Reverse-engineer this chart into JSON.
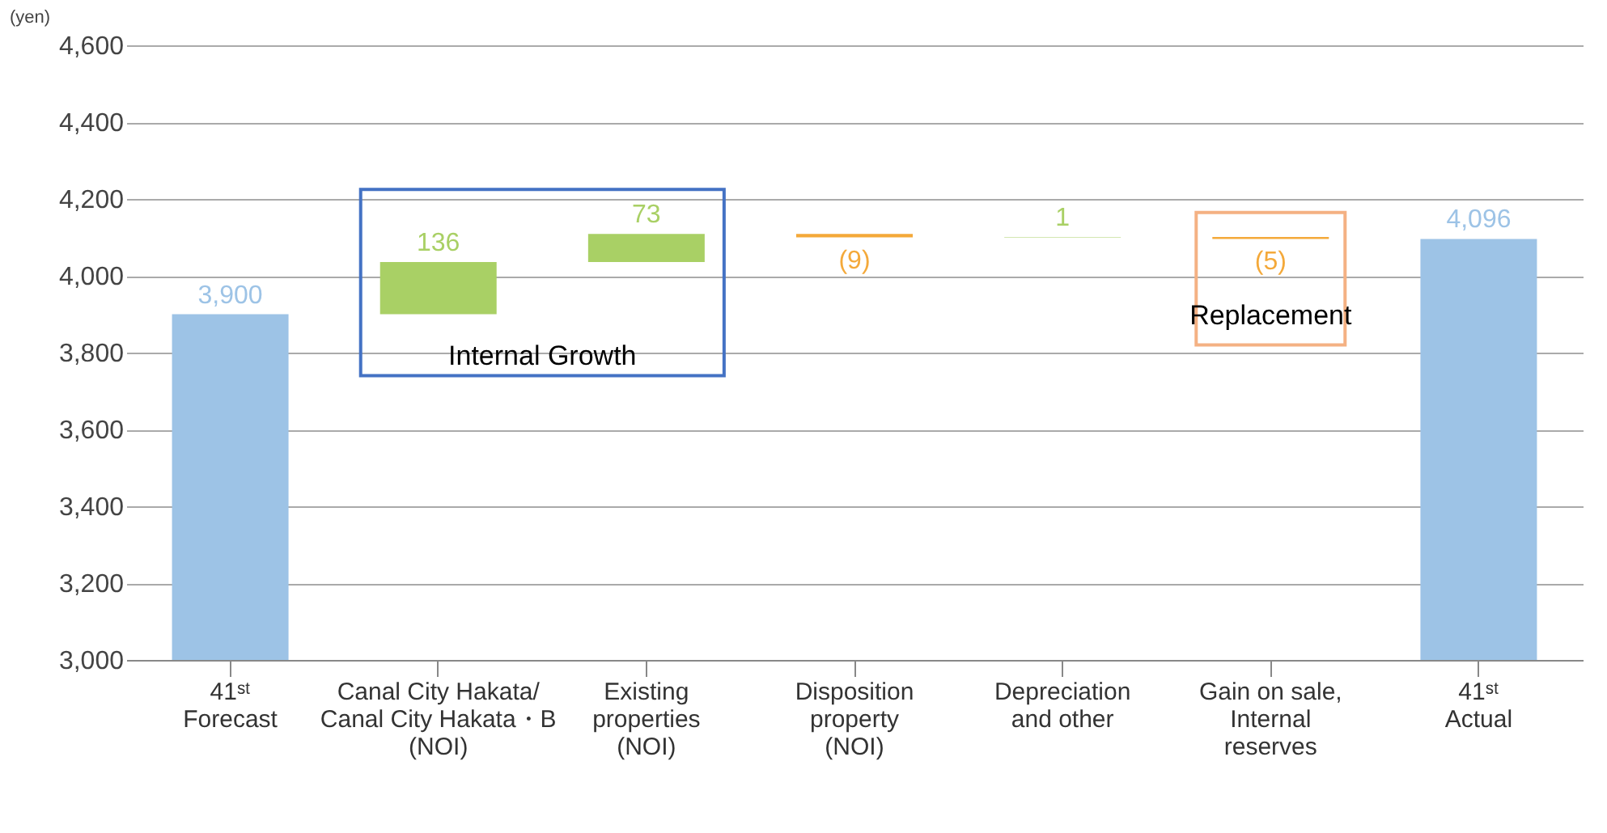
{
  "chart_data": {
    "type": "bar",
    "ylabel": "(yen)",
    "categories": [
      "41ˢᵗ\nForecast",
      "Canal City Hakata/\nCanal City Hakata・B\n(NOI)",
      "Existing\nproperties\n(NOI)",
      "Disposition\nproperty\n(NOI)",
      "Depreciation\nand other",
      "Gain on sale,\nInternal\nreserves",
      "41ˢᵗ\nActual"
    ],
    "values": [
      3900,
      136,
      73,
      -9,
      1,
      -5,
      4096
    ],
    "base": [
      null,
      3900,
      4036,
      4109,
      4100,
      4101,
      null
    ],
    "colors": [
      "#9dc3e6",
      "#a9d065",
      "#a9d065",
      "#f4a93a",
      "#a9d065",
      "#f4a93a",
      "#9dc3e6"
    ],
    "value_labels": [
      "3,900",
      "136",
      "73",
      "(9)",
      "1",
      "(5)",
      "4,096"
    ],
    "ylim": [
      3000,
      4600
    ],
    "yticks": [
      {
        "value": 3000,
        "label": "3,000"
      },
      {
        "value": 3200,
        "label": "3,200"
      },
      {
        "value": 3400,
        "label": "3,400"
      },
      {
        "value": 3600,
        "label": "3,600"
      },
      {
        "value": 3800,
        "label": "3,800"
      },
      {
        "value": 4000,
        "label": "4,000"
      },
      {
        "value": 4200,
        "label": "4,200"
      },
      {
        "value": 4400,
        "label": "4,400"
      },
      {
        "value": 4600,
        "label": "4,600"
      }
    ],
    "grid": "y",
    "annotations": [
      "Internal Growth",
      "Replacement"
    ]
  }
}
